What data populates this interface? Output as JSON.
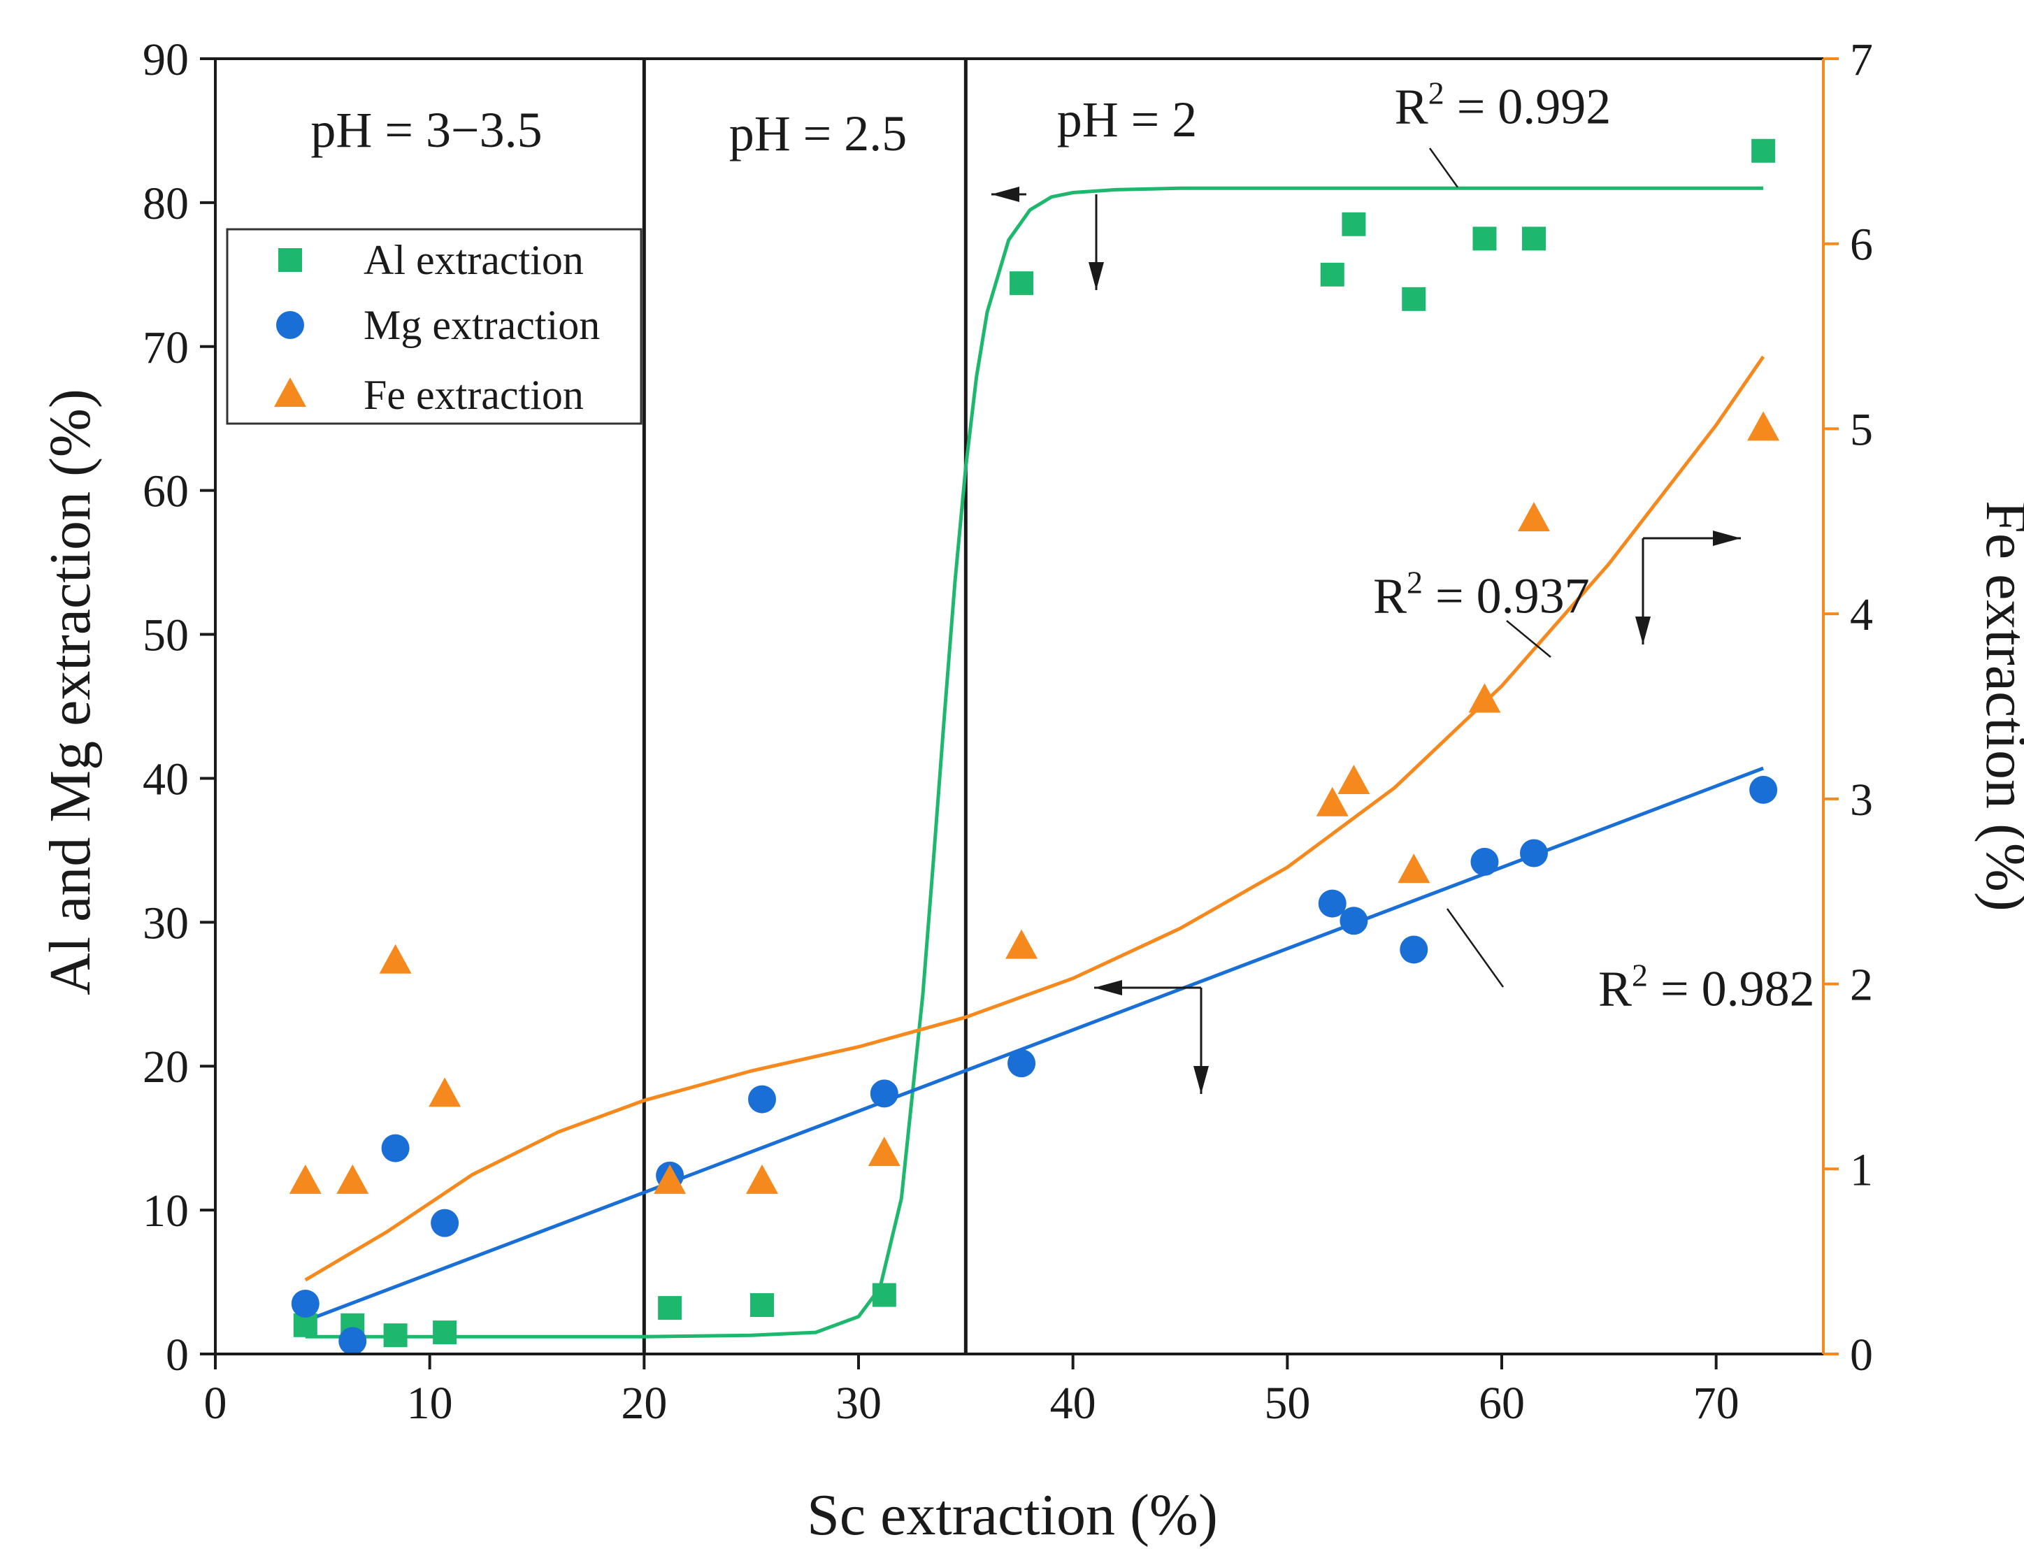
{
  "chart_data": {
    "type": "scatter",
    "xlabel": "Sc extraction (%)",
    "ylabel": "Al and Mg extraction (%)",
    "y2label": "Fe extraction (%)",
    "xlim": [
      0,
      75
    ],
    "ylim": [
      0,
      90
    ],
    "y2lim": [
      0,
      7
    ],
    "xticks": [
      "0",
      "10",
      "20",
      "30",
      "40",
      "50",
      "60",
      "70"
    ],
    "yticks": [
      "0",
      "10",
      "20",
      "30",
      "40",
      "50",
      "60",
      "70",
      "80",
      "90"
    ],
    "y2ticks": [
      "0",
      "1",
      "2",
      "3",
      "4",
      "5",
      "6",
      "7"
    ],
    "colors": {
      "al": "#1db86e",
      "mg": "#1a6fd6",
      "fe": "#f5891e",
      "frame": "#1a1a1a"
    },
    "regions": [
      {
        "label": "pH = 3−3.5",
        "x_start": 0,
        "x_end": 20
      },
      {
        "label": "pH = 2.5",
        "x_start": 20,
        "x_end": 35
      },
      {
        "label": "pH = 2",
        "x_start": 35,
        "x_end": 75
      }
    ],
    "series": [
      {
        "name": "Al extraction",
        "axis": "left",
        "marker": "square",
        "x": [
          4.2,
          6.4,
          8.4,
          10.7,
          21.2,
          25.5,
          31.2,
          37.6,
          52.1,
          53.1,
          55.9,
          59.2,
          61.5,
          72.2
        ],
        "y": [
          2.0,
          2.0,
          1.3,
          1.5,
          3.2,
          3.4,
          4.1,
          74.4,
          75.0,
          78.5,
          73.3,
          77.5,
          77.5,
          83.6
        ]
      },
      {
        "name": "Mg extraction",
        "axis": "left",
        "marker": "circle",
        "x": [
          4.2,
          6.4,
          8.4,
          10.7,
          21.2,
          25.5,
          31.2,
          37.6,
          52.1,
          53.1,
          55.9,
          59.2,
          61.5,
          72.2
        ],
        "y": [
          3.5,
          0.9,
          14.3,
          9.1,
          12.4,
          17.7,
          18.1,
          20.2,
          31.3,
          30.1,
          28.1,
          34.2,
          34.8,
          39.2
        ]
      },
      {
        "name": "Fe extraction",
        "axis": "right",
        "marker": "triangle",
        "x": [
          4.2,
          6.4,
          8.4,
          10.7,
          21.2,
          25.5,
          31.2,
          37.6,
          52.1,
          53.1,
          55.9,
          59.2,
          61.5,
          72.2
        ],
        "y": [
          0.93,
          0.93,
          2.12,
          1.4,
          0.93,
          0.93,
          1.08,
          2.2,
          2.97,
          3.09,
          2.61,
          3.53,
          4.51,
          5.0
        ]
      }
    ],
    "fits": [
      {
        "name": "Al sigmoid fit",
        "series": "Al extraction",
        "axis": "left",
        "x": [
          4.2,
          10,
          15,
          20,
          25,
          28,
          30,
          31,
          32,
          33,
          33.5,
          34,
          34.5,
          35,
          35.5,
          36,
          37,
          38,
          39,
          40,
          42,
          45,
          50,
          60,
          72.2
        ],
        "y": [
          1.2,
          1.2,
          1.2,
          1.2,
          1.3,
          1.5,
          2.6,
          4.6,
          10.8,
          25.0,
          34.4,
          44.3,
          53.7,
          61.6,
          67.9,
          72.4,
          77.4,
          79.5,
          80.4,
          80.7,
          80.9,
          81.0,
          81.0,
          81.0,
          81.0
        ],
        "label": "R",
        "label_sup": "2",
        "label_rest": " = 0.992",
        "label_x": 55,
        "label_y": 85.5
      },
      {
        "name": "Mg linear fit",
        "series": "Mg extraction",
        "axis": "left",
        "x": [
          4.2,
          72.2
        ],
        "y": [
          2.3,
          40.7
        ],
        "label": "R",
        "label_sup": "2",
        "label_rest": " = 0.982",
        "label_x": 64.5,
        "label_y": 24.2
      },
      {
        "name": "Fe polynomial fit",
        "series": "Fe extraction",
        "axis": "right",
        "x": [
          4.2,
          8,
          12,
          16,
          20,
          25,
          30,
          35,
          40,
          45,
          50,
          55,
          60,
          65,
          70,
          72.2
        ],
        "y": [
          0.4,
          0.66,
          0.97,
          1.2,
          1.37,
          1.53,
          1.66,
          1.82,
          2.03,
          2.3,
          2.63,
          3.06,
          3.61,
          4.27,
          5.02,
          5.39
        ],
        "label": "R",
        "label_sup": "2",
        "label_rest": " = 0.937",
        "label_x": 54,
        "label_y": 51.5
      }
    ],
    "legend": {
      "position": "top-left",
      "entries": [
        "Al extraction",
        "Mg extraction",
        "Fe extraction"
      ]
    }
  }
}
